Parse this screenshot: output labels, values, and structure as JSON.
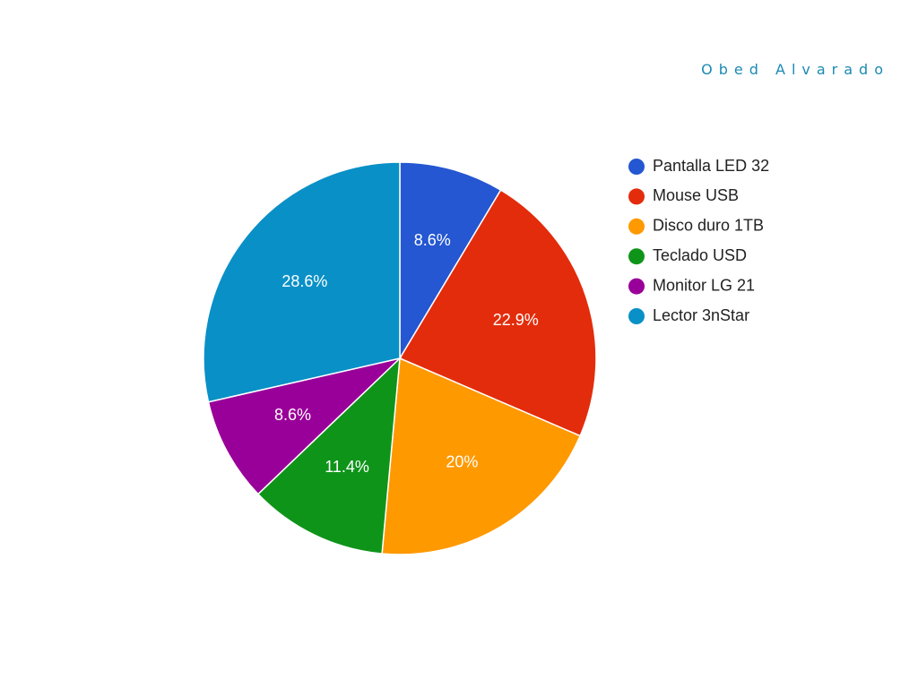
{
  "author": "Obed Alvarado",
  "chart_data": {
    "type": "pie",
    "categories": [
      "Pantalla LED 32",
      "Mouse USB",
      "Disco duro 1TB",
      "Teclado USD",
      "Monitor LG 21",
      "Lector 3nStar"
    ],
    "values": [
      8.6,
      22.9,
      20,
      11.4,
      8.6,
      28.6
    ],
    "labels": [
      "8.6%",
      "22.9%",
      "20%",
      "11.4%",
      "8.6%",
      "28.6%"
    ],
    "colors": [
      "#2457d1",
      "#e32c0b",
      "#ff9900",
      "#0f941a",
      "#990099",
      "#0990c7"
    ],
    "legend_position": "right",
    "start_angle": "12 o'clock",
    "direction": "clockwise"
  }
}
